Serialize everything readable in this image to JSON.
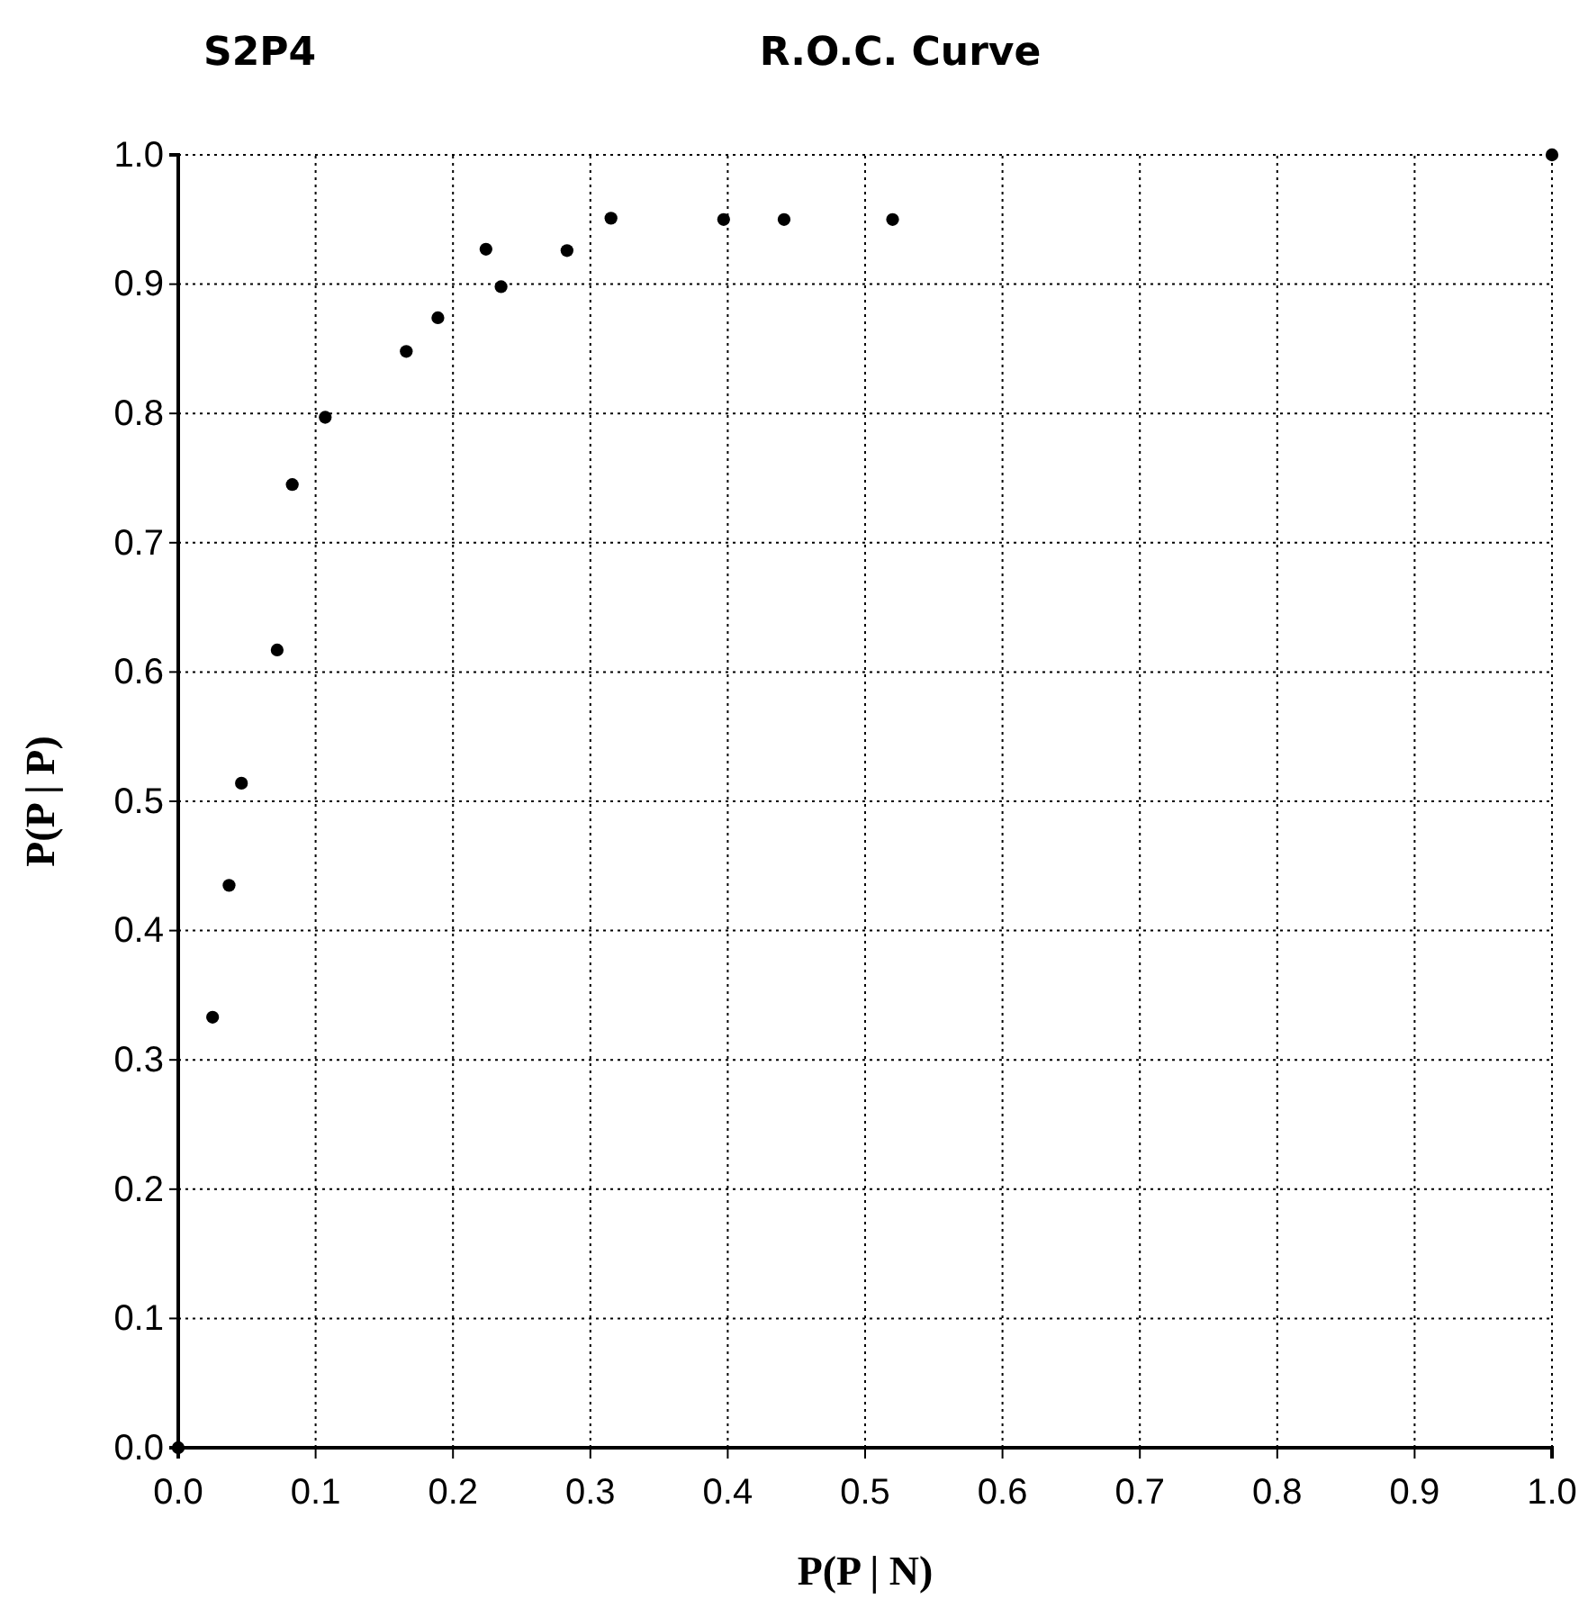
{
  "chart_data": {
    "type": "scatter",
    "title": "R.O.C. Curve",
    "subtitle": "S2P4",
    "xlabel": "P(P | N)",
    "ylabel": "P(P | P)",
    "x": [
      0,
      0.025,
      0.037,
      0.046,
      0.072,
      0.083,
      0.107,
      0.166,
      0.189,
      0.224,
      0.235,
      0.283,
      0.315,
      0.397,
      0.441,
      0.52,
      1
    ],
    "series": [
      {
        "color": "#000000",
        "values": [
          0,
          0.333,
          0.435,
          0.514,
          0.617,
          0.745,
          0.797,
          0.848,
          0.874,
          0.927,
          0.898,
          0.926,
          0.951,
          0.95,
          0.95,
          0.95,
          1
        ]
      }
    ],
    "xlim": [
      0,
      1
    ],
    "ylim": [
      0,
      1
    ],
    "xticks": [
      {
        "value": 0,
        "label": "0.0"
      },
      0.1,
      0.2,
      0.3,
      0.4,
      0.5,
      0.6,
      0.7,
      0.8,
      0.9,
      {
        "value": 1,
        "label": "1.0"
      }
    ],
    "yticks": [
      {
        "value": 0,
        "label": "0.0"
      },
      0.1,
      0.2,
      0.3,
      0.4,
      0.5,
      0.6,
      0.7,
      0.8,
      0.9,
      {
        "value": 1,
        "label": "1.0"
      }
    ],
    "grid": true,
    "marker": "circle"
  }
}
